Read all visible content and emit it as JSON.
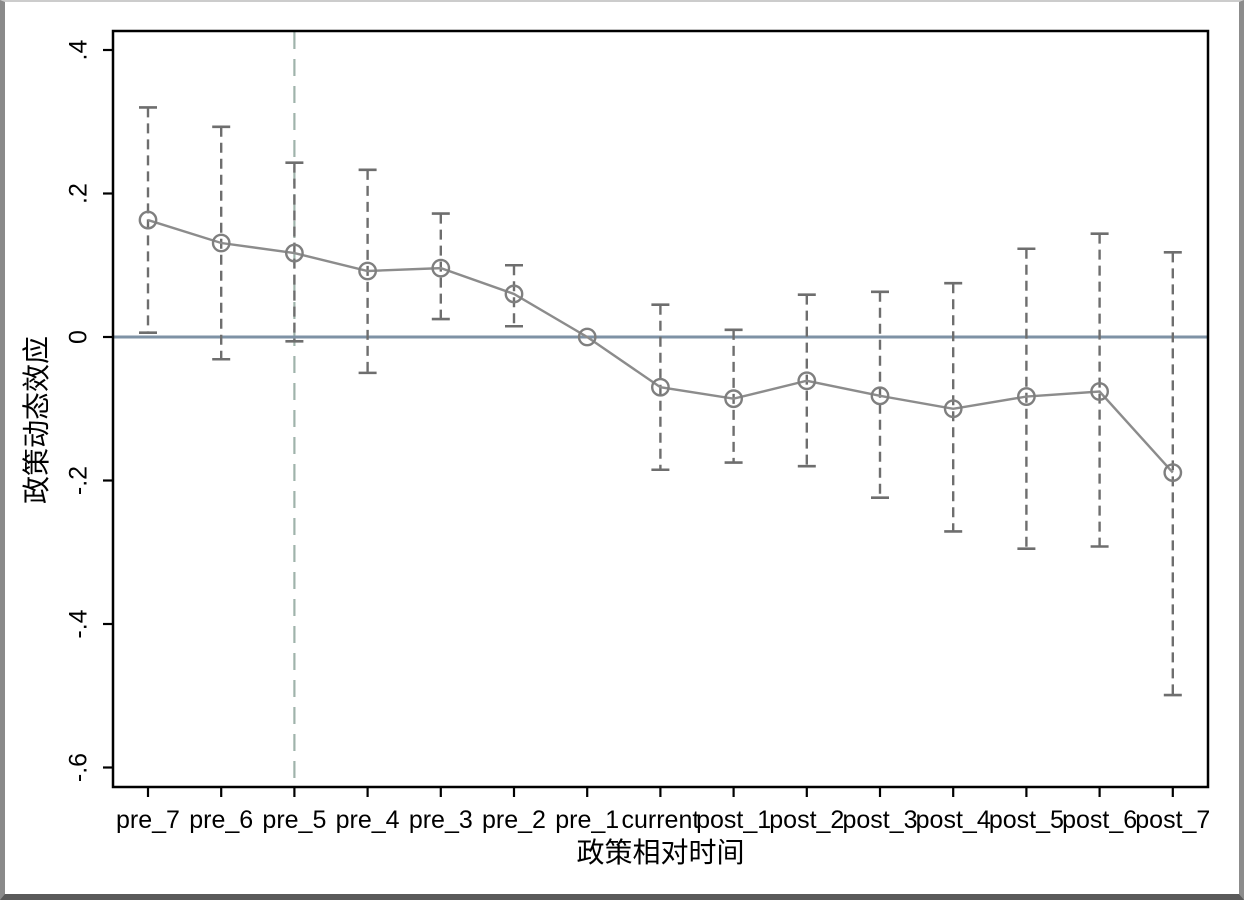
{
  "figure": {
    "type": "event-study-plot",
    "description_visible_text_only": true
  },
  "colors": {
    "background": "#ffffff",
    "axis_frame": "#000000",
    "tick": "#000000",
    "connector_line": "#8c8c8c",
    "marker_stroke": "#7f7f7f",
    "ci_bar": "#6e6e6e",
    "zero_line": "#7e92a5",
    "reference_vline": "#9fb3ab",
    "window_border_left": "#8a8a8a",
    "window_border_right": "#8c8c8c",
    "window_border_bottom": "#5a5a5a",
    "window_border_top": "#cccccc"
  },
  "chart_data": {
    "type": "line",
    "title": "",
    "xlabel": "政策相对时间",
    "ylabel": "政策动态效应",
    "categories": [
      "pre_7",
      "pre_6",
      "pre_5",
      "pre_4",
      "pre_3",
      "pre_2",
      "pre_1",
      "current",
      "post_1",
      "post_2",
      "post_3",
      "post_4",
      "post_5",
      "post_6",
      "post_7"
    ],
    "series": [
      {
        "name": "政策动态效应",
        "values": [
          0.163,
          0.131,
          0.117,
          0.092,
          0.096,
          0.06,
          0.0,
          -0.07,
          -0.086,
          -0.061,
          -0.082,
          -0.1,
          -0.083,
          -0.076,
          -0.189
        ]
      }
    ],
    "ci_low": [
      0.006,
      -0.031,
      -0.006,
      -0.05,
      0.025,
      0.015,
      null,
      -0.185,
      -0.175,
      -0.18,
      -0.224,
      -0.271,
      -0.295,
      -0.292,
      -0.499
    ],
    "ci_high": [
      0.32,
      0.293,
      0.243,
      0.233,
      0.172,
      0.1,
      null,
      0.045,
      0.01,
      0.059,
      0.063,
      0.075,
      0.123,
      0.144,
      0.118
    ],
    "yticks": [
      0.4,
      0.2,
      0,
      -0.2,
      -0.4,
      -0.6
    ],
    "ytick_labels": [
      ".4",
      ".2",
      "0",
      "-.2",
      "-.4",
      "-.6"
    ],
    "ylim": [
      -0.629,
      0.427
    ],
    "reference_vline_category": "pre_5",
    "reference_hline_value": 0,
    "grid": false,
    "legend": "none",
    "marker": "hollow-circle",
    "ci_style": "dashed-with-caps"
  }
}
